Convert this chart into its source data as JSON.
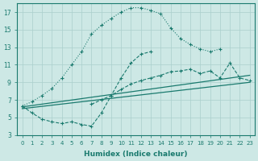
{
  "xlabel": "Humidex (Indice chaleur)",
  "background_color": "#cde8e5",
  "grid_color": "#aacfcc",
  "line_color": "#1a7a6e",
  "xlim": [
    -0.5,
    23.5
  ],
  "ylim": [
    3,
    18
  ],
  "yticks": [
    3,
    5,
    7,
    9,
    11,
    13,
    15,
    17
  ],
  "xticks": [
    0,
    1,
    2,
    3,
    4,
    5,
    6,
    7,
    8,
    9,
    10,
    11,
    12,
    13,
    14,
    15,
    16,
    17,
    18,
    19,
    20,
    21,
    22,
    23
  ],
  "series": [
    {
      "x": [
        0,
        1,
        2,
        3,
        4,
        5,
        6,
        7,
        8,
        9,
        10,
        11,
        12,
        13,
        14,
        15,
        16,
        17,
        18,
        19,
        20
      ],
      "y": [
        6.3,
        6.8,
        7.5,
        8.3,
        9.5,
        11.0,
        12.5,
        14.5,
        15.5,
        16.3,
        17.0,
        17.5,
        17.5,
        17.2,
        16.8,
        15.2,
        14.0,
        13.3,
        12.8,
        12.5,
        12.8
      ],
      "linestyle": "dotted",
      "marker": "+"
    },
    {
      "x": [
        0,
        1,
        2,
        3,
        4,
        5,
        6,
        7,
        8,
        9,
        10,
        11,
        12,
        13
      ],
      "y": [
        6.3,
        5.5,
        4.8,
        4.5,
        4.3,
        4.5,
        4.2,
        4.0,
        5.5,
        7.5,
        9.5,
        11.2,
        12.2,
        12.5
      ],
      "linestyle": "dashed",
      "marker": "+"
    },
    {
      "x": [
        0,
        23
      ],
      "y": [
        6.0,
        9.0
      ],
      "linestyle": "solid",
      "marker": null
    },
    {
      "x": [
        0,
        23
      ],
      "y": [
        6.2,
        9.8
      ],
      "linestyle": "solid",
      "marker": null
    },
    {
      "x": [
        7,
        8,
        9,
        10,
        11,
        12,
        13,
        14,
        15,
        16,
        17,
        18,
        19,
        20,
        21,
        22,
        23
      ],
      "y": [
        6.5,
        7.0,
        7.5,
        8.2,
        8.8,
        9.2,
        9.5,
        9.8,
        10.2,
        10.3,
        10.5,
        10.0,
        10.3,
        9.5,
        11.2,
        9.5,
        9.2
      ],
      "linestyle": "dashed",
      "marker": "+"
    }
  ]
}
